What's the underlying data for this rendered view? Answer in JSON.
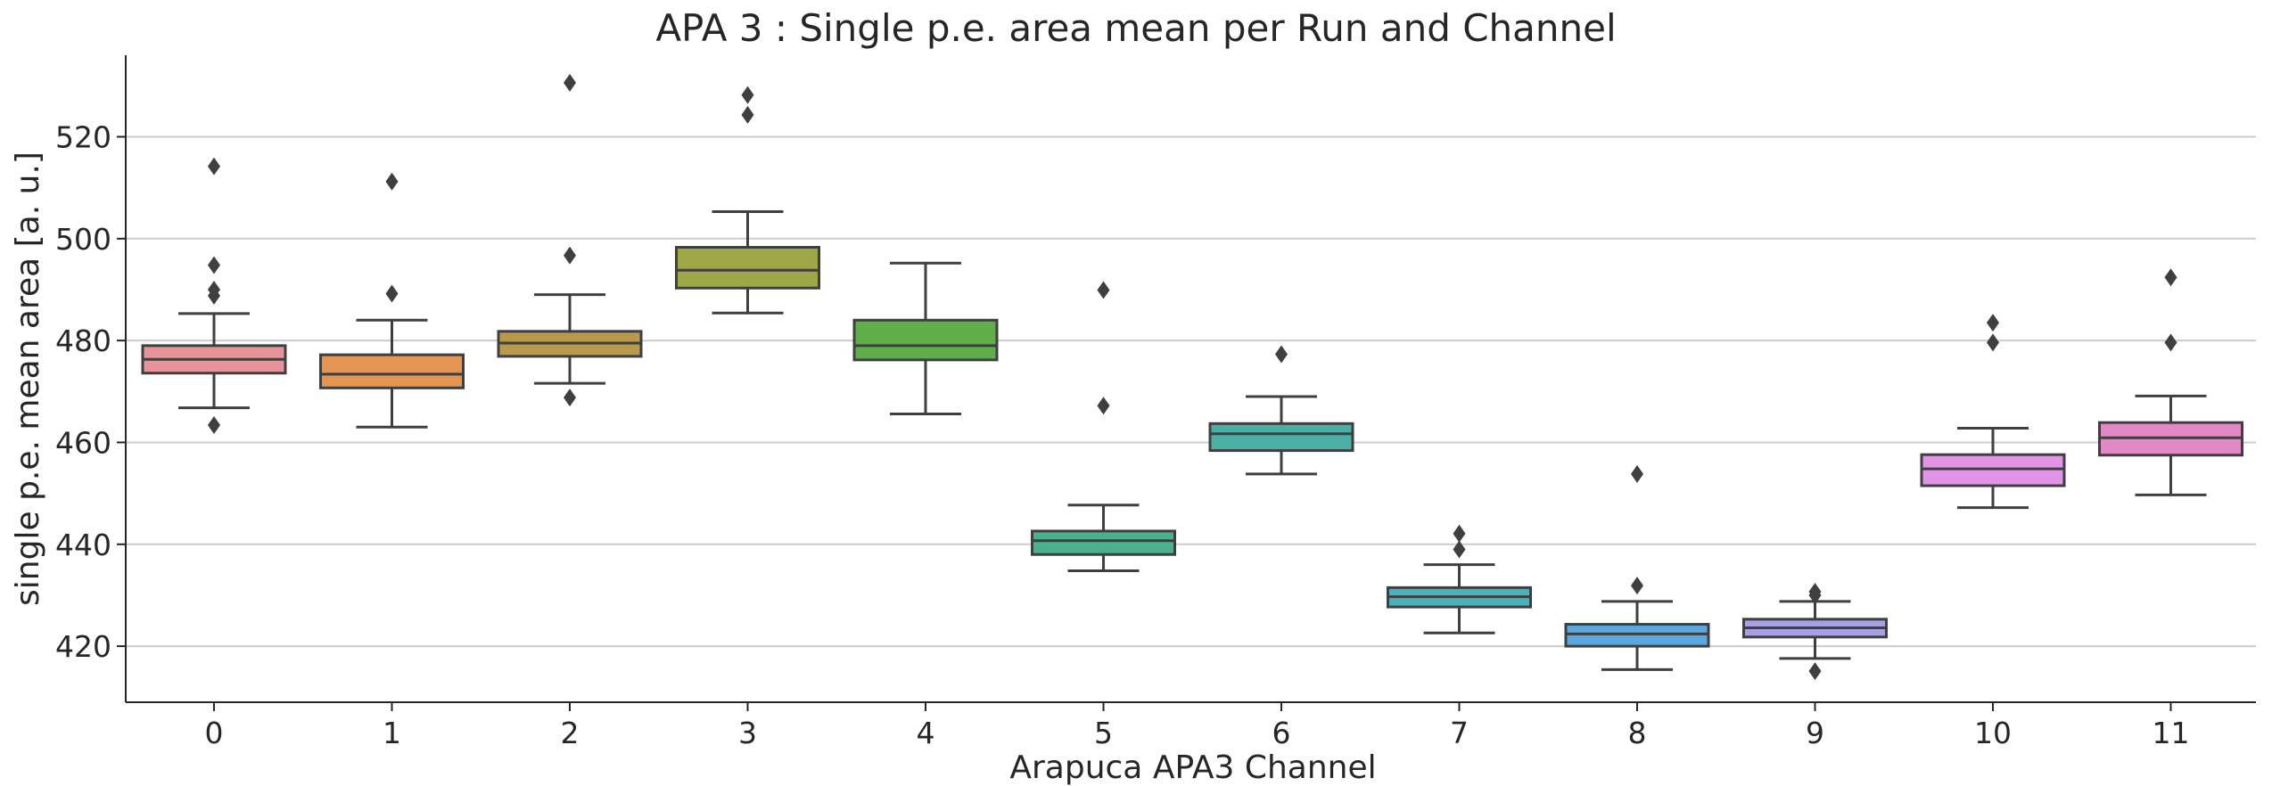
{
  "chart_data": {
    "type": "box",
    "title": "APA 3 : Single p.e. area mean per Run and Channel",
    "xlabel": "Arapuca APA3 Channel",
    "ylabel": "single p.e. mean area [a. u.]",
    "ylim": [
      409,
      536
    ],
    "yticks": [
      420,
      440,
      460,
      480,
      500,
      520
    ],
    "grid": "horizontal",
    "categories": [
      "0",
      "1",
      "2",
      "3",
      "4",
      "5",
      "6",
      "7",
      "8",
      "9",
      "10",
      "11"
    ],
    "boxes": [
      {
        "category": "0",
        "color": "#e8929a",
        "whisker_low": 466.8,
        "q1": 473.6,
        "median": 476.3,
        "q3": 479.0,
        "whisker_high": 485.3,
        "outliers": [
          463.4,
          488.8,
          490.0,
          494.8,
          514.2
        ]
      },
      {
        "category": "1",
        "color": "#e49552",
        "whisker_low": 463.0,
        "q1": 470.7,
        "median": 473.4,
        "q3": 477.2,
        "whisker_high": 484.0,
        "outliers": [
          489.2,
          511.2
        ]
      },
      {
        "category": "2",
        "color": "#b89a4a",
        "whisker_low": 471.6,
        "q1": 476.9,
        "median": 479.5,
        "q3": 481.8,
        "whisker_high": 489.0,
        "outliers": [
          468.8,
          496.7,
          530.6
        ]
      },
      {
        "category": "3",
        "color": "#9da746",
        "whisker_low": 485.4,
        "q1": 490.3,
        "median": 493.8,
        "q3": 498.3,
        "whisker_high": 505.3,
        "outliers": [
          524.3,
          528.2
        ]
      },
      {
        "category": "4",
        "color": "#5faf48",
        "whisker_low": 465.6,
        "q1": 476.2,
        "median": 479.0,
        "q3": 484.0,
        "whisker_high": 495.2,
        "outliers": []
      },
      {
        "category": "5",
        "color": "#4ab18f",
        "whisker_low": 434.8,
        "q1": 438.0,
        "median": 440.7,
        "q3": 442.6,
        "whisker_high": 447.7,
        "outliers": [
          467.2,
          489.9
        ]
      },
      {
        "category": "6",
        "color": "#4ab0a6",
        "whisker_low": 453.8,
        "q1": 458.4,
        "median": 461.7,
        "q3": 463.7,
        "whisker_high": 469.0,
        "outliers": [
          477.3
        ]
      },
      {
        "category": "7",
        "color": "#4bb1bb",
        "whisker_low": 422.6,
        "q1": 427.7,
        "median": 429.7,
        "q3": 431.5,
        "whisker_high": 436.0,
        "outliers": [
          439.0,
          442.1
        ]
      },
      {
        "category": "8",
        "color": "#5aa8e2",
        "whisker_low": 415.4,
        "q1": 420.0,
        "median": 422.4,
        "q3": 424.3,
        "whisker_high": 428.8,
        "outliers": [
          431.9,
          453.8
        ]
      },
      {
        "category": "9",
        "color": "#a8a0e4",
        "whisker_low": 417.6,
        "q1": 421.8,
        "median": 423.6,
        "q3": 425.3,
        "whisker_high": 428.8,
        "outliers": [
          415.1,
          430.0,
          430.7
        ]
      },
      {
        "category": "10",
        "color": "#e193e6",
        "whisker_low": 447.2,
        "q1": 451.5,
        "median": 454.8,
        "q3": 457.6,
        "whisker_high": 462.8,
        "outliers": [
          479.6,
          483.5
        ]
      },
      {
        "category": "11",
        "color": "#e388c6",
        "whisker_low": 449.7,
        "q1": 457.5,
        "median": 460.9,
        "q3": 463.9,
        "whisker_high": 469.1,
        "outliers": [
          479.6,
          492.4
        ]
      }
    ]
  }
}
